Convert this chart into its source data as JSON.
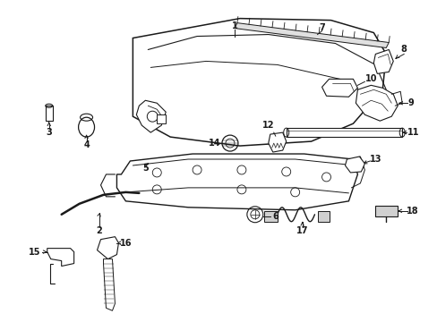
{
  "background_color": "#ffffff",
  "line_color": "#1a1a1a",
  "fig_width": 4.89,
  "fig_height": 3.6,
  "dpi": 100,
  "label_fontsize": 7.0,
  "label_fontweight": "bold"
}
